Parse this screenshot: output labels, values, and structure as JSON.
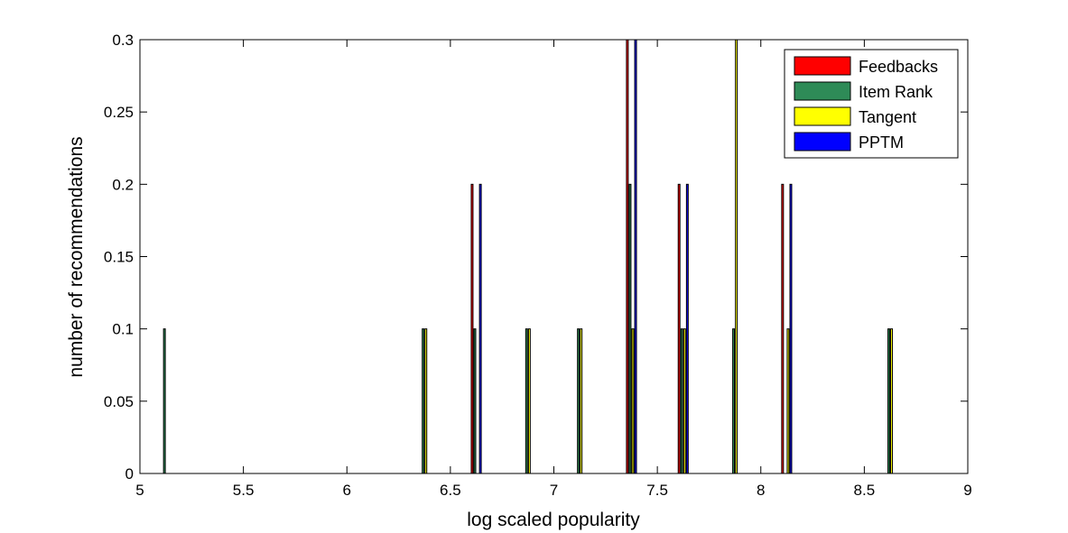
{
  "chart_data": {
    "type": "bar",
    "xlabel": "log scaled popularity",
    "ylabel": "number of recommendations",
    "xlim": [
      5,
      9
    ],
    "ylim": [
      0,
      0.3
    ],
    "x_ticks": [
      "5",
      "5.5",
      "6",
      "6.5",
      "7",
      "7.5",
      "8",
      "8.5",
      "9"
    ],
    "y_ticks": [
      "0",
      "0.05",
      "0.1",
      "0.15",
      "0.2",
      "0.25",
      "0.3"
    ],
    "x": [
      5.125,
      5.375,
      5.625,
      5.875,
      6.125,
      6.375,
      6.625,
      6.875,
      7.125,
      7.375,
      7.625,
      7.875,
      8.125,
      8.375,
      8.625,
      8.875
    ],
    "legend_position": "top-right",
    "grid": false,
    "series": [
      {
        "name": "Feedbacks",
        "color": "#ff0000",
        "values": [
          0,
          0,
          0,
          0,
          0,
          0,
          0.2,
          0,
          0,
          0.3,
          0.2,
          0,
          0.2,
          0,
          0,
          0
        ]
      },
      {
        "name": "Item Rank",
        "color": "#2e8b57",
        "values": [
          0.1,
          0,
          0,
          0,
          0,
          0.1,
          0.1,
          0.1,
          0.1,
          0.2,
          0.1,
          0.1,
          0,
          0,
          0.1,
          0
        ]
      },
      {
        "name": "Tangent",
        "color": "#ffff00",
        "values": [
          0,
          0,
          0,
          0,
          0,
          0.1,
          0,
          0.1,
          0.1,
          0.1,
          0.1,
          0.3,
          0.1,
          0,
          0.1,
          0
        ]
      },
      {
        "name": "PPTM",
        "color": "#0000ff",
        "values": [
          0,
          0,
          0,
          0,
          0,
          0,
          0.2,
          0,
          0,
          0.3,
          0.2,
          0,
          0.2,
          0,
          0,
          0
        ]
      }
    ]
  }
}
